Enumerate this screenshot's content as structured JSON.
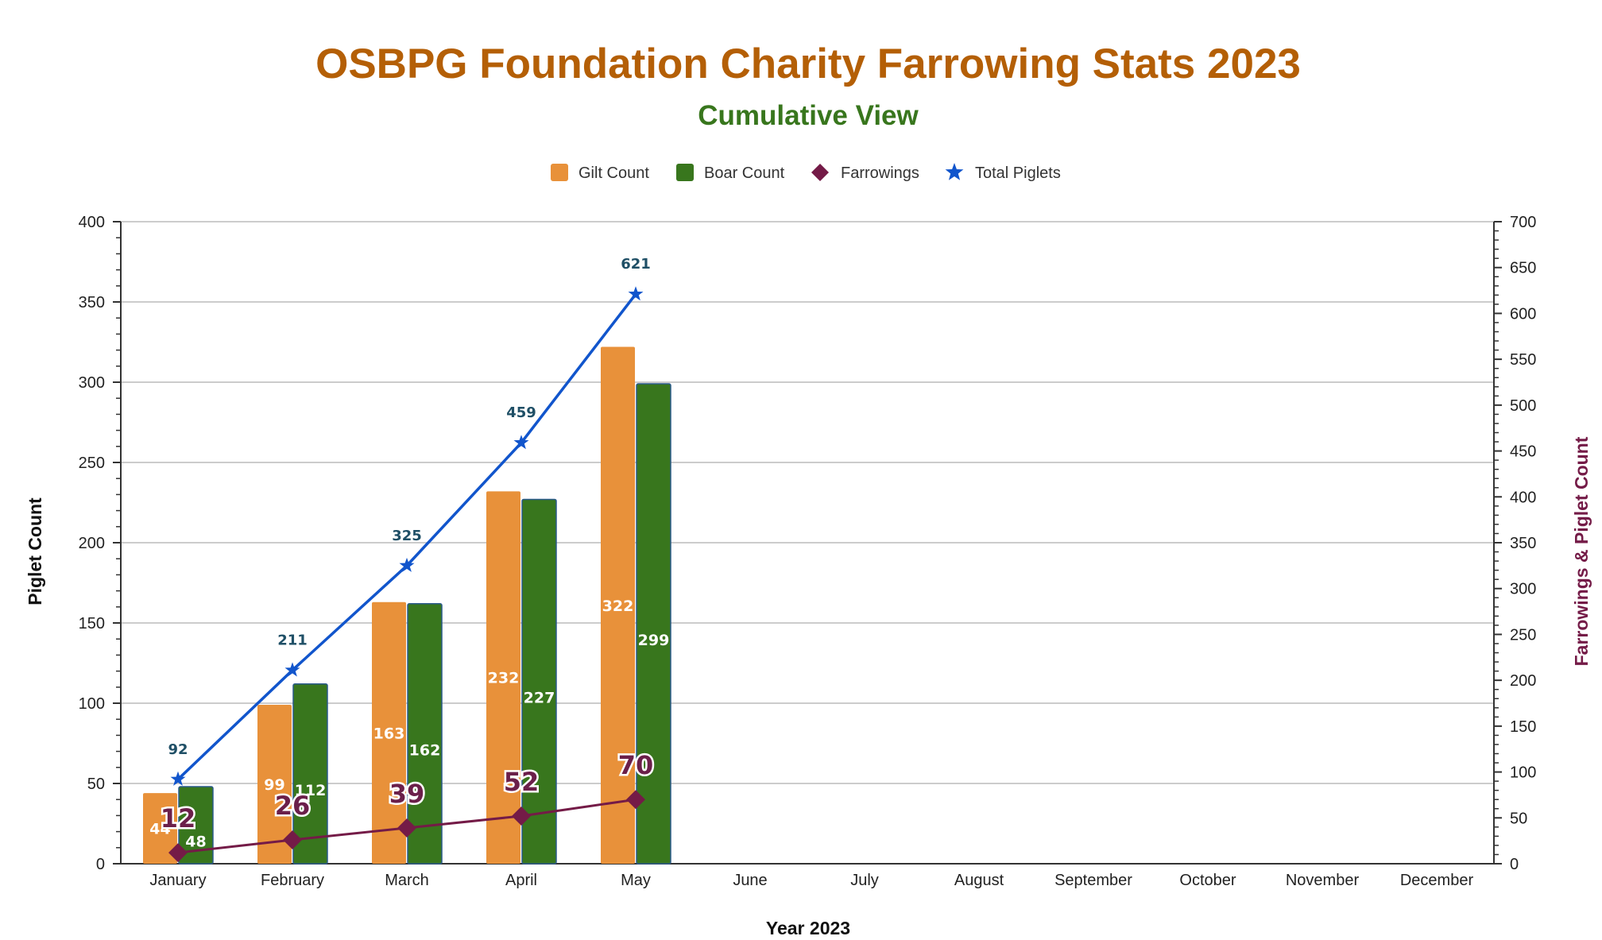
{
  "chart_data": {
    "type": "bar",
    "title": "OSBPG Foundation Charity Farrowing Stats 2023",
    "subtitle": "Cumulative View",
    "xlabel": "Year 2023",
    "ylabel": "Piglet Count",
    "y2label": "Farrowings & Piglet Count",
    "ylim": [
      0,
      400
    ],
    "y2lim": [
      0,
      700
    ],
    "yticks": [
      0,
      50,
      100,
      150,
      200,
      250,
      300,
      350,
      400
    ],
    "y2ticks": [
      0,
      50,
      100,
      150,
      200,
      250,
      300,
      350,
      400,
      450,
      500,
      550,
      600,
      650,
      700
    ],
    "grid": true,
    "legend_position": "top-center",
    "categories": [
      "January",
      "February",
      "March",
      "April",
      "May",
      "June",
      "July",
      "August",
      "September",
      "October",
      "November",
      "December"
    ],
    "series": [
      {
        "name": "Gilt Count",
        "kind": "bar",
        "axis": "left",
        "color": "#e8913a",
        "values": [
          44,
          99,
          163,
          232,
          322,
          null,
          null,
          null,
          null,
          null,
          null,
          null
        ]
      },
      {
        "name": "Boar Count",
        "kind": "bar",
        "axis": "left",
        "color": "#38761d",
        "values": [
          48,
          112,
          162,
          227,
          299,
          null,
          null,
          null,
          null,
          null,
          null,
          null
        ]
      },
      {
        "name": "Farrowings",
        "kind": "line",
        "marker": "diamond",
        "axis": "right",
        "color": "#741b47",
        "values": [
          12,
          26,
          39,
          52,
          70,
          null,
          null,
          null,
          null,
          null,
          null,
          null
        ]
      },
      {
        "name": "Total Piglets",
        "kind": "line",
        "marker": "star",
        "axis": "right",
        "color": "#1155cc",
        "values": [
          92,
          211,
          325,
          459,
          621,
          null,
          null,
          null,
          null,
          null,
          null,
          null
        ]
      }
    ],
    "colors": {
      "title": "#b45f06",
      "subtitle": "#38761d",
      "y2label": "#741b47",
      "piglet_label": "#1f4f66",
      "grid": "#cccccc"
    }
  }
}
